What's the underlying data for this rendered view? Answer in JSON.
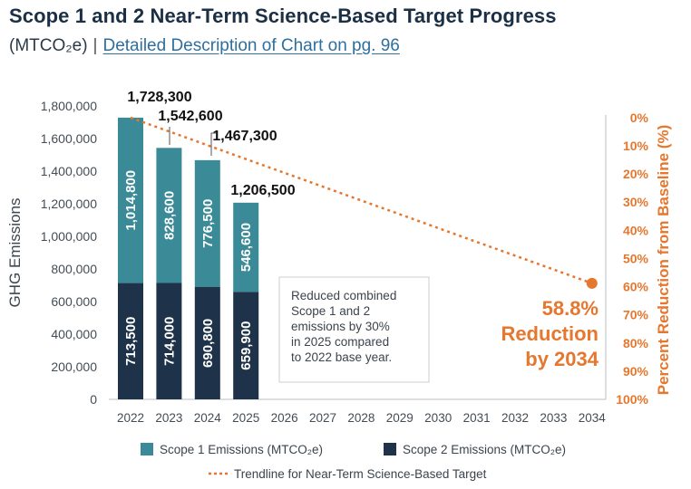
{
  "title": "Scope 1 and 2 Near-Term Science-Based Target Progress",
  "unit": "(MTCO₂e)",
  "separator": "|",
  "link_text": "Detailed Description of Chart on pg. 96",
  "colors": {
    "scope1": "#3a8a98",
    "scope2": "#1e3349",
    "trend": "#e5772e",
    "axis_text": "#444c55",
    "right_axis": "#e5772e"
  },
  "chart_data": {
    "type": "bar",
    "stacked": true,
    "categories": [
      "2022",
      "2023",
      "2024",
      "2025",
      "2026",
      "2027",
      "2028",
      "2029",
      "2030",
      "2031",
      "2032",
      "2033",
      "2034"
    ],
    "series": [
      {
        "name": "Scope 2 Emissions (MTCO₂e)",
        "values": [
          713500,
          714000,
          690800,
          659900,
          null,
          null,
          null,
          null,
          null,
          null,
          null,
          null,
          null
        ],
        "labels": [
          "713,500",
          "714,000",
          "690,800",
          "659,900"
        ]
      },
      {
        "name": "Scope 1 Emissions (MTCO₂e)",
        "values": [
          1014800,
          828600,
          776500,
          546600,
          null,
          null,
          null,
          null,
          null,
          null,
          null,
          null,
          null
        ],
        "labels": [
          "1,014,800",
          "828,600",
          "776,500",
          "546,600"
        ]
      }
    ],
    "totals": [
      1728300,
      1542600,
      1467300,
      1206500
    ],
    "total_labels": [
      "1,728,300",
      "1,542,600",
      "1,467,300",
      "1,206,500"
    ],
    "trendline": {
      "name": "Trendline for Near-Term Science-Based Target",
      "start": {
        "x": "2022",
        "y": 1728300
      },
      "end": {
        "x": "2034",
        "reduction_pct": 58.8
      }
    },
    "ylabel": "GHG Emissions",
    "ylim": [
      0,
      1800000
    ],
    "yticks": [
      "0",
      "200,000",
      "400,000",
      "600,000",
      "800,000",
      "1,000,000",
      "1,200,000",
      "1,400,000",
      "1,600,000",
      "1,800,000"
    ],
    "y2label": "Percent Reduction from Baseline (%)",
    "y2ticks": [
      "0%",
      "10%",
      "20%",
      "30%",
      "40%",
      "50%",
      "60%",
      "70%",
      "80%",
      "90%",
      "100%"
    ],
    "y2lim": [
      0,
      100
    ],
    "annotation_box": [
      "Reduced combined",
      "Scope 1 and 2",
      "emissions by 30%",
      "in 2025 compared",
      "to 2022 base year."
    ],
    "target_callout": [
      "58.8%",
      "Reduction",
      "by 2034"
    ],
    "legend": {
      "scope1": "Scope 1 Emissions (MTCO₂e)",
      "scope2": "Scope 2 Emissions (MTCO₂e)",
      "trend": "Trendline for Near-Term Science-Based Target"
    },
    "grid": false
  }
}
